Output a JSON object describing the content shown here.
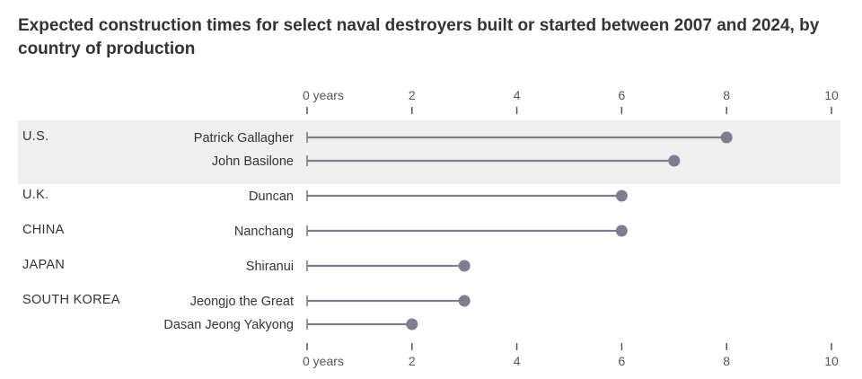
{
  "title": "Expected construction times for select naval destroyers built or started between 2007 and 2024, by country of production",
  "colors": {
    "line": "#7f7d8f",
    "dot": "#7f7d8f",
    "band": "#efefef",
    "tick": "#555555"
  },
  "chart_data": {
    "type": "lollipop",
    "title": "Expected construction times for select naval destroyers built or started between 2007 and 2024, by country of production",
    "xlim": [
      0,
      10
    ],
    "ticks": [
      "0 years",
      "2",
      "4",
      "6",
      "8",
      "10"
    ],
    "tick_values": [
      0,
      2,
      4,
      6,
      8,
      10
    ],
    "groups": [
      {
        "country": "U.S.",
        "highlight": true,
        "ships": [
          {
            "name": "Patrick Gallagher",
            "value": 8
          },
          {
            "name": "John Basilone",
            "value": 7
          }
        ]
      },
      {
        "country": "U.K.",
        "highlight": false,
        "ships": [
          {
            "name": "Duncan",
            "value": 6
          }
        ]
      },
      {
        "country": "CHINA",
        "highlight": false,
        "ships": [
          {
            "name": "Nanchang",
            "value": 6
          }
        ]
      },
      {
        "country": "JAPAN",
        "highlight": false,
        "ships": [
          {
            "name": "Shiranui",
            "value": 3
          }
        ]
      },
      {
        "country": "SOUTH KOREA",
        "highlight": false,
        "ships": [
          {
            "name": "Jeongjo the Great",
            "value": 3
          },
          {
            "name": "Dasan Jeong Yakyong",
            "value": 2
          }
        ]
      }
    ]
  }
}
